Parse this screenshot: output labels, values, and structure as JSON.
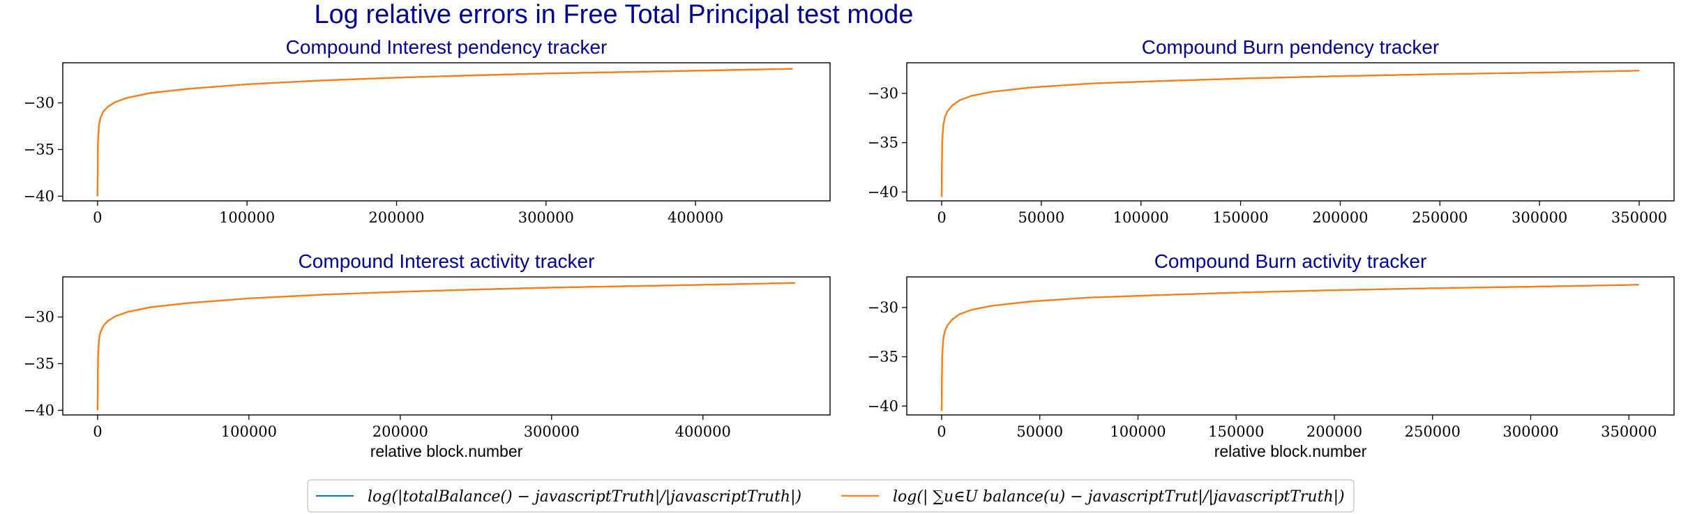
{
  "figure": {
    "title": "Log relative errors in Free Total Principal test mode",
    "title_color": "#00008b",
    "legend": {
      "placement": "bottom-center",
      "entries": [
        {
          "label": "log(|totalBalance() − javascriptTruth|/|javascriptTruth|)",
          "color": "#1f77b4"
        },
        {
          "label": "log(| ∑u∈U balance(u) − javascriptTrut|/|javascriptTruth|)",
          "color": "#ff7f0e"
        }
      ]
    }
  },
  "chart_data": [
    {
      "type": "line",
      "title": "Compound Interest pendency tracker",
      "xlabel": "",
      "ylabel": "",
      "xlim": [
        -23250,
        490000
      ],
      "ylim": [
        -40.5,
        -25.7
      ],
      "xticks": [
        0,
        100000,
        200000,
        300000,
        400000
      ],
      "xtick_labels": [
        "0",
        "100000",
        "200000",
        "300000",
        "400000"
      ],
      "yticks": [
        -30,
        -35,
        -40
      ],
      "ytick_labels": [
        "−30",
        "−35",
        "−40"
      ],
      "grid": false,
      "series": [
        {
          "color": "#1f77b4",
          "x": [
            0,
            300,
            1000,
            2000,
            4000,
            7000,
            12000,
            20000,
            35000,
            60000,
            100000,
            150000,
            200000,
            250000,
            300000,
            350000,
            400000,
            465000
          ],
          "y": [
            -40.0,
            -34.0,
            -32.3,
            -31.6,
            -30.9,
            -30.4,
            -29.9,
            -29.45,
            -28.95,
            -28.5,
            -28.0,
            -27.6,
            -27.3,
            -27.05,
            -26.85,
            -26.7,
            -26.55,
            -26.35
          ]
        },
        {
          "color": "#ff7f0e",
          "x": [
            0,
            300,
            1000,
            2000,
            4000,
            7000,
            12000,
            20000,
            35000,
            60000,
            100000,
            150000,
            200000,
            250000,
            300000,
            350000,
            400000,
            465000
          ],
          "y": [
            -40.0,
            -34.0,
            -32.3,
            -31.6,
            -30.9,
            -30.4,
            -29.9,
            -29.45,
            -28.95,
            -28.5,
            -28.0,
            -27.6,
            -27.3,
            -27.05,
            -26.85,
            -26.7,
            -26.55,
            -26.35
          ]
        }
      ]
    },
    {
      "type": "line",
      "title": "Compound Burn pendency tracker",
      "xlabel": "",
      "ylabel": "",
      "xlim": [
        -17500,
        367500
      ],
      "ylim": [
        -40.9,
        -26.9
      ],
      "xticks": [
        0,
        50000,
        100000,
        150000,
        200000,
        250000,
        300000,
        350000
      ],
      "xtick_labels": [
        "0",
        "50000",
        "100000",
        "150000",
        "200000",
        "250000",
        "300000",
        "350000"
      ],
      "yticks": [
        -30,
        -35,
        -40
      ],
      "ytick_labels": [
        "−30",
        "−35",
        "−40"
      ],
      "grid": false,
      "series": [
        {
          "color": "#1f77b4",
          "x": [
            0,
            250,
            800,
            1600,
            3000,
            5500,
            9000,
            15000,
            25000,
            45000,
            75000,
            110000,
            150000,
            200000,
            250000,
            300000,
            350000
          ],
          "y": [
            -40.5,
            -35.0,
            -33.3,
            -32.4,
            -31.8,
            -31.2,
            -30.7,
            -30.25,
            -29.85,
            -29.4,
            -29.0,
            -28.75,
            -28.5,
            -28.25,
            -28.05,
            -27.9,
            -27.7
          ]
        },
        {
          "color": "#ff7f0e",
          "x": [
            0,
            250,
            800,
            1600,
            3000,
            5500,
            9000,
            15000,
            25000,
            45000,
            75000,
            110000,
            150000,
            200000,
            250000,
            300000,
            350000
          ],
          "y": [
            -40.5,
            -35.0,
            -33.3,
            -32.4,
            -31.8,
            -31.2,
            -30.7,
            -30.25,
            -29.85,
            -29.4,
            -29.0,
            -28.75,
            -28.5,
            -28.25,
            -28.05,
            -27.9,
            -27.7
          ]
        }
      ]
    },
    {
      "type": "line",
      "title": "Compound Interest activity tracker",
      "xlabel": "relative block.number",
      "ylabel": "",
      "xlim": [
        -23000,
        484000
      ],
      "ylim": [
        -40.5,
        -25.7
      ],
      "xticks": [
        0,
        100000,
        200000,
        300000,
        400000
      ],
      "xtick_labels": [
        "0",
        "100000",
        "200000",
        "300000",
        "400000"
      ],
      "yticks": [
        -30,
        -35,
        -40
      ],
      "ytick_labels": [
        "−30",
        "−35",
        "−40"
      ],
      "grid": false,
      "series": [
        {
          "color": "#1f77b4",
          "x": [
            0,
            300,
            1000,
            2000,
            4000,
            7000,
            12000,
            20000,
            35000,
            60000,
            100000,
            150000,
            200000,
            250000,
            300000,
            350000,
            400000,
            461000
          ],
          "y": [
            -40.0,
            -34.0,
            -32.3,
            -31.6,
            -30.9,
            -30.4,
            -29.9,
            -29.45,
            -28.95,
            -28.5,
            -28.0,
            -27.6,
            -27.3,
            -27.05,
            -26.85,
            -26.7,
            -26.55,
            -26.35
          ]
        },
        {
          "color": "#ff7f0e",
          "x": [
            0,
            300,
            1000,
            2000,
            4000,
            7000,
            12000,
            20000,
            35000,
            60000,
            100000,
            150000,
            200000,
            250000,
            300000,
            350000,
            400000,
            461000
          ],
          "y": [
            -40.0,
            -34.0,
            -32.3,
            -31.6,
            -30.9,
            -30.4,
            -29.9,
            -29.45,
            -28.95,
            -28.5,
            -28.0,
            -27.6,
            -27.3,
            -27.05,
            -26.85,
            -26.7,
            -26.55,
            -26.35
          ]
        }
      ]
    },
    {
      "type": "line",
      "title": "Compound Burn activity tracker",
      "xlabel": "relative block.number",
      "ylabel": "",
      "xlim": [
        -17750,
        373000
      ],
      "ylim": [
        -40.9,
        -26.9
      ],
      "xticks": [
        0,
        50000,
        100000,
        150000,
        200000,
        250000,
        300000,
        350000
      ],
      "xtick_labels": [
        "0",
        "50000",
        "100000",
        "150000",
        "200000",
        "250000",
        "300000",
        "350000"
      ],
      "yticks": [
        -30,
        -35,
        -40
      ],
      "ytick_labels": [
        "−30",
        "−35",
        "−40"
      ],
      "grid": false,
      "series": [
        {
          "color": "#1f77b4",
          "x": [
            0,
            250,
            800,
            1600,
            3000,
            5500,
            9000,
            15000,
            25000,
            45000,
            75000,
            110000,
            150000,
            200000,
            250000,
            300000,
            355000
          ],
          "y": [
            -40.5,
            -35.0,
            -33.3,
            -32.4,
            -31.8,
            -31.2,
            -30.7,
            -30.25,
            -29.85,
            -29.4,
            -29.0,
            -28.75,
            -28.5,
            -28.25,
            -28.05,
            -27.9,
            -27.7
          ]
        },
        {
          "color": "#ff7f0e",
          "x": [
            0,
            250,
            800,
            1600,
            3000,
            5500,
            9000,
            15000,
            25000,
            45000,
            75000,
            110000,
            150000,
            200000,
            250000,
            300000,
            355000
          ],
          "y": [
            -40.5,
            -35.0,
            -33.3,
            -32.4,
            -31.8,
            -31.2,
            -30.7,
            -30.25,
            -29.85,
            -29.4,
            -29.0,
            -28.75,
            -28.5,
            -28.25,
            -28.05,
            -27.9,
            -27.7
          ]
        }
      ]
    }
  ]
}
